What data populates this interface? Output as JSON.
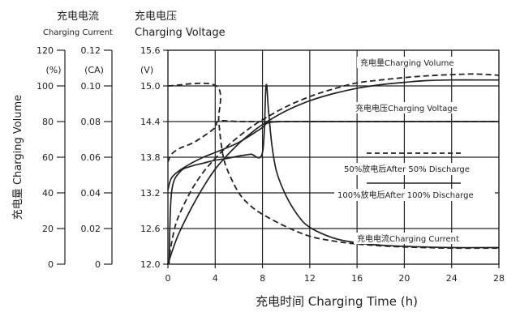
{
  "chart_data": {
    "type": "line",
    "xlabel": "充电时间 Charging Time (h)",
    "ylabel": "充电量 Charging Volume",
    "current_axis_title": {
      "cn": "充电电流",
      "en": "Charging Current"
    },
    "voltage_axis_title": {
      "cn": "充电电压",
      "en": "Charging Voltage"
    },
    "volume_unit": "(%)",
    "current_unit": "(CA)",
    "voltage_unit": "(V)",
    "x_ticks": [
      "0",
      "4",
      "8",
      "12",
      "16",
      "20",
      "24",
      "28"
    ],
    "volume_ticks": [
      "120",
      "100",
      "80",
      "60",
      "40",
      "20",
      "0"
    ],
    "current_ticks": [
      "0.12",
      "0.10",
      "0.08",
      "0.06",
      "0.04",
      "0.02",
      "0"
    ],
    "voltage_ticks": [
      "15.6",
      "15.0",
      "14.4",
      "13.8",
      "13.2",
      "12.6",
      "12.0"
    ],
    "xlim": [
      0,
      28
    ],
    "voltage_ylim": [
      12.0,
      15.6
    ],
    "grid": true,
    "annotations": {
      "volume": "充电量Charging Volume",
      "voltage": "充电电压Charging Voltage",
      "after50": "50%放电后After 50% Discharge",
      "after100": "100%放电后After 100% Discharge",
      "current": "充电电流Charging Current"
    },
    "series": [
      {
        "role": "volume",
        "discharge": "50%",
        "style": "dashed",
        "x": [
          0,
          0.5,
          1,
          2,
          3,
          4,
          5,
          6,
          7,
          8,
          10,
          12,
          14,
          16,
          18,
          20,
          22,
          24,
          26,
          28
        ],
        "y_voltage": [
          12.0,
          12.55,
          12.85,
          13.25,
          13.55,
          13.78,
          13.98,
          14.15,
          14.3,
          14.43,
          14.65,
          14.82,
          14.95,
          15.05,
          15.1,
          15.14,
          15.17,
          15.19,
          15.2,
          15.18
        ]
      },
      {
        "role": "volume",
        "discharge": "100%",
        "style": "solid",
        "x": [
          0,
          0.5,
          1,
          2,
          3,
          4,
          5,
          6,
          7,
          8,
          10,
          12,
          14,
          16,
          18,
          20,
          22,
          24,
          26,
          28
        ],
        "y_voltage": [
          12.0,
          12.3,
          12.55,
          12.95,
          13.3,
          13.6,
          13.83,
          14.03,
          14.2,
          14.35,
          14.58,
          14.75,
          14.87,
          14.96,
          15.02,
          15.06,
          15.09,
          15.1,
          15.1,
          15.1
        ]
      },
      {
        "role": "voltage",
        "discharge": "50%",
        "style": "dashed",
        "x": [
          0,
          0.3,
          1,
          2,
          3,
          4,
          4.3,
          6,
          8,
          12,
          16,
          20,
          24,
          28
        ],
        "y_voltage": [
          13.72,
          13.85,
          13.95,
          14.03,
          14.15,
          14.3,
          14.41,
          14.4,
          14.4,
          14.4,
          14.4,
          14.4,
          14.4,
          14.4
        ]
      },
      {
        "role": "voltage",
        "discharge": "100%",
        "style": "solid",
        "x": [
          0,
          0.3,
          1,
          2,
          3,
          4,
          5,
          6,
          7,
          8,
          8.5,
          10,
          12,
          16,
          20,
          24,
          28
        ],
        "y_voltage": [
          13.25,
          13.45,
          13.58,
          13.7,
          13.8,
          13.88,
          13.96,
          14.05,
          14.17,
          14.3,
          14.38,
          14.4,
          14.4,
          14.4,
          14.4,
          14.4,
          14.4
        ]
      },
      {
        "role": "current",
        "discharge": "50%",
        "style": "dashed",
        "x": [
          0,
          4.1,
          4.3,
          4.6,
          5,
          6,
          7,
          8,
          10,
          12,
          14,
          16,
          18,
          20,
          24,
          28
        ],
        "y_voltage": [
          15.0,
          15.0,
          14.4,
          13.9,
          13.6,
          13.2,
          12.98,
          12.84,
          12.63,
          12.47,
          12.39,
          12.34,
          12.31,
          12.29,
          12.27,
          12.27
        ]
      },
      {
        "role": "current",
        "discharge": "100%",
        "style": "solid",
        "x": [
          0.1,
          0.3,
          1,
          2,
          3,
          4,
          5,
          6,
          7,
          8,
          8.3,
          8.5,
          8.8,
          9.2,
          10,
          11,
          12,
          14,
          16,
          18,
          20,
          24,
          28
        ],
        "y_voltage": [
          12.0,
          13.2,
          13.55,
          13.65,
          13.7,
          13.75,
          13.78,
          13.82,
          13.85,
          13.88,
          15.0,
          14.6,
          14.0,
          13.55,
          13.15,
          12.82,
          12.62,
          12.44,
          12.36,
          12.32,
          12.3,
          12.28,
          12.28
        ]
      }
    ]
  }
}
